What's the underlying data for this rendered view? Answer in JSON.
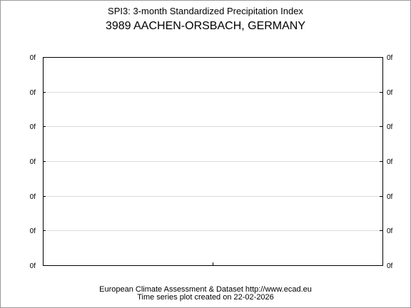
{
  "title": "SPI3: 3-month Standardized Precipitation Index",
  "station": "3989 AACHEN-ORSBACH, GERMANY",
  "footer": {
    "line1": "European Climate Assessment & Dataset  http://www.ecad.eu",
    "line2": "Time series plot created on 22-02-2026"
  },
  "chart_data": {
    "type": "line",
    "title": "SPI3: 3-month Standardized Precipitation Index",
    "subtitle": "3989 AACHEN-ORSBACH, GERMANY",
    "xlabel": "",
    "ylabel": "",
    "y_tick_labels": [
      "0f",
      "0f",
      "0f",
      "0f",
      "0f",
      "0f",
      "0f"
    ],
    "x_tick_labels": [],
    "series": [],
    "grid": true,
    "legend": "none",
    "colors": {
      "grid": "#dcdcdc",
      "axis": "#000000"
    }
  }
}
